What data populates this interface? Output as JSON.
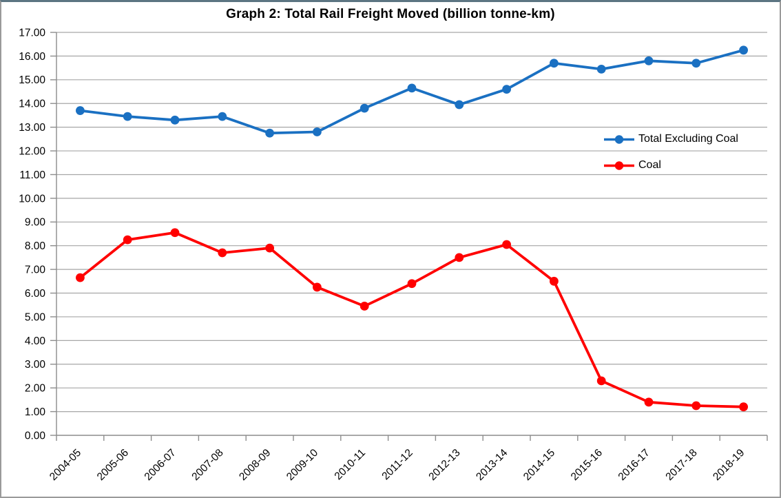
{
  "frame": {
    "title": "Graph 2: Total Rail Freight Moved (billion tonne-km)"
  },
  "chart_data": {
    "type": "line",
    "title": "Graph 2: Total Rail Freight Moved (billion tonne-km)",
    "categories": [
      "2004-05",
      "2005-06",
      "2006-07",
      "2007-08",
      "2008-09",
      "2009-10",
      "2010-11",
      "2011-12",
      "2012-13",
      "2013-14",
      "2014-15",
      "2015-16",
      "2016-17",
      "2017-18",
      "2018-19"
    ],
    "series": [
      {
        "name": "Total Excluding Coal",
        "color": "#1A70C2",
        "marker": "circle",
        "values": [
          13.7,
          13.45,
          13.3,
          13.45,
          12.75,
          12.8,
          13.8,
          14.65,
          13.95,
          14.6,
          15.7,
          15.45,
          15.8,
          15.7,
          16.25
        ]
      },
      {
        "name": "Coal",
        "color": "#FF0000",
        "marker": "circle",
        "values": [
          6.65,
          8.25,
          8.55,
          7.7,
          7.9,
          6.25,
          5.45,
          6.4,
          7.5,
          8.05,
          6.5,
          2.3,
          1.4,
          1.25,
          1.2
        ]
      }
    ],
    "y_axis": {
      "min": 0,
      "max": 17,
      "step": 1,
      "tick_labels": [
        "0.00",
        "1.00",
        "2.00",
        "3.00",
        "4.00",
        "5.00",
        "6.00",
        "7.00",
        "8.00",
        "9.00",
        "10.00",
        "11.00",
        "12.00",
        "13.00",
        "14.00",
        "15.00",
        "16.00",
        "17.00"
      ]
    },
    "x_axis": {
      "label_rotation_deg": 45,
      "tick_position": "between-categories"
    },
    "legend": {
      "position": "inside-right",
      "items": [
        "Total Excluding Coal",
        "Coal"
      ]
    },
    "grid": "horizontal",
    "colors": {
      "gridline": "#A6A6A6",
      "axis": "#8C8C8C",
      "text": "#000000",
      "frame_top": "#5C7582",
      "frame_side": "#9A9A9A"
    }
  }
}
